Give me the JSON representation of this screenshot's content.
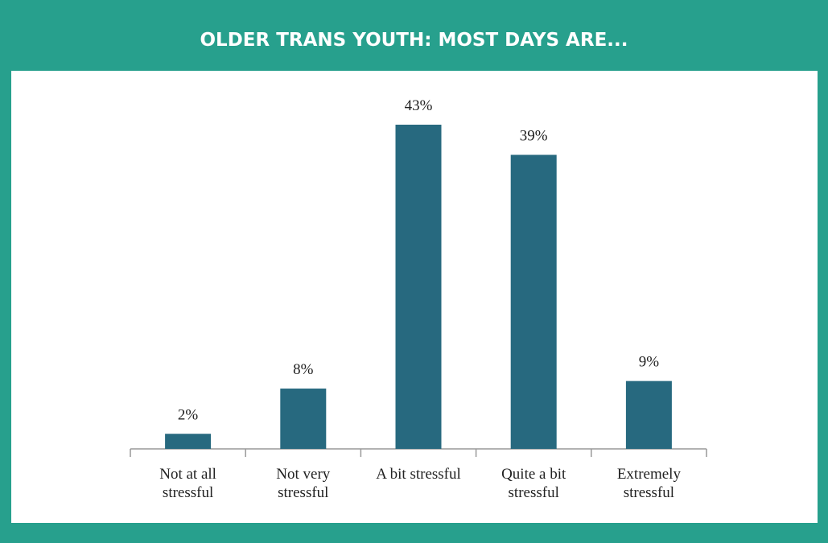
{
  "chart_data": {
    "type": "bar",
    "title": "OLDER TRANS YOUTH: MOST DAYS ARE...",
    "categories": [
      "Not at all stressful",
      "Not very stressful",
      "A bit stressful",
      "Quite a bit stressful",
      "Extremely stressful"
    ],
    "values": [
      2,
      8,
      43,
      39,
      9
    ],
    "value_labels": [
      "2%",
      "8%",
      "43%",
      "39%",
      "9%"
    ],
    "color": "#27697f"
  }
}
